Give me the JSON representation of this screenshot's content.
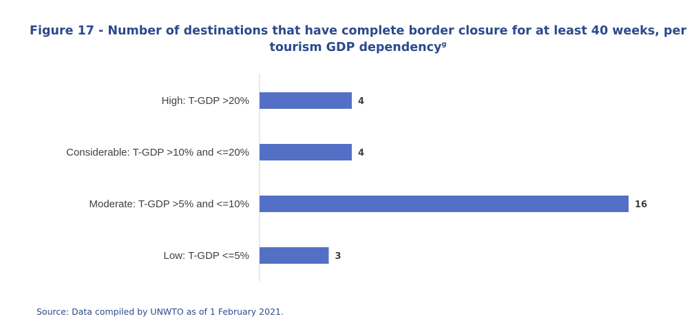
{
  "chart_data": {
    "type": "bar",
    "orientation": "horizontal",
    "title": "Figure 17 - Number of destinations that have complete border closure for at least 40 weeks, per tourism GDP dependency",
    "title_line1": "Figure 17 - Number of destinations that have complete border closure for at least 40 weeks, per",
    "title_line2": "tourism GDP dependency",
    "title_footnote": "g",
    "categories": [
      "High: T-GDP >20%",
      "Considerable: T-GDP >10% and <=20%",
      "Moderate: T-GDP >5% and <=10%",
      "Low: T-GDP <=5%"
    ],
    "values": [
      4,
      4,
      16,
      3
    ],
    "data_labels": [
      "4",
      "4",
      "16",
      "3"
    ],
    "xlim": [
      0,
      16
    ],
    "grid": false,
    "legend": "none",
    "colors": {
      "bar": "#5470c6",
      "title": "#2c4a8c",
      "axis": "#d0d0d0",
      "label": "#404040",
      "value_label": "#404040"
    }
  },
  "source": "Source: Data compiled by UNWTO as of 1 February 2021."
}
